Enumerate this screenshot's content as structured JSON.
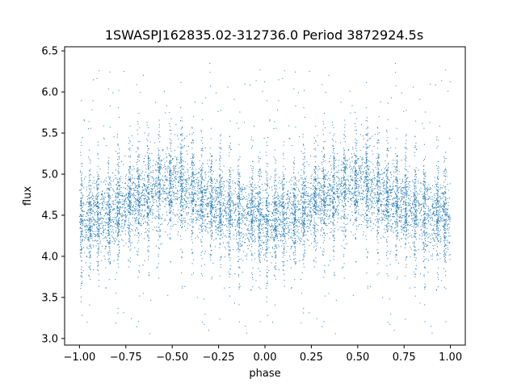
{
  "chart_data": {
    "type": "scatter",
    "title": "1SWASPJ162835.02-312736.0 Period 3872924.5s",
    "xlabel": "phase",
    "ylabel": "flux",
    "xlim": [
      -1.08,
      1.08
    ],
    "ylim": [
      2.92,
      6.55
    ],
    "xticks": [
      -1.0,
      -0.75,
      -0.5,
      -0.25,
      0.0,
      0.25,
      0.5,
      0.75,
      1.0
    ],
    "xtick_labels": [
      "−1.00",
      "−0.75",
      "−0.50",
      "−0.25",
      "0.00",
      "0.25",
      "0.50",
      "0.75",
      "1.00"
    ],
    "yticks": [
      3.0,
      3.5,
      4.0,
      4.5,
      5.0,
      5.5,
      6.0,
      6.5
    ],
    "ytick_labels": [
      "3.0",
      "3.5",
      "4.0",
      "4.5",
      "5.0",
      "5.5",
      "6.0",
      "6.5"
    ],
    "grid": false,
    "marker_color": "#1f77b4",
    "series": [
      {
        "phase_trend": [
          [
            0.0,
            4.42
          ],
          [
            0.12,
            4.5
          ],
          [
            0.25,
            4.62
          ],
          [
            0.35,
            4.75
          ],
          [
            0.45,
            4.85
          ],
          [
            0.55,
            4.85
          ],
          [
            0.65,
            4.7
          ],
          [
            0.75,
            4.6
          ],
          [
            0.85,
            4.5
          ],
          [
            0.95,
            4.55
          ],
          [
            1.0,
            4.42
          ]
        ],
        "scatter_sigma": 0.22,
        "observation_segments_phase": [
          0.01,
          0.055,
          0.1,
          0.16,
          0.21,
          0.27,
          0.32,
          0.37,
          0.43,
          0.49,
          0.55,
          0.61,
          0.66,
          0.71,
          0.76,
          0.81,
          0.86,
          0.93,
          0.97
        ],
        "outlier_flux_range": [
          3.05,
          6.35
        ]
      }
    ]
  }
}
